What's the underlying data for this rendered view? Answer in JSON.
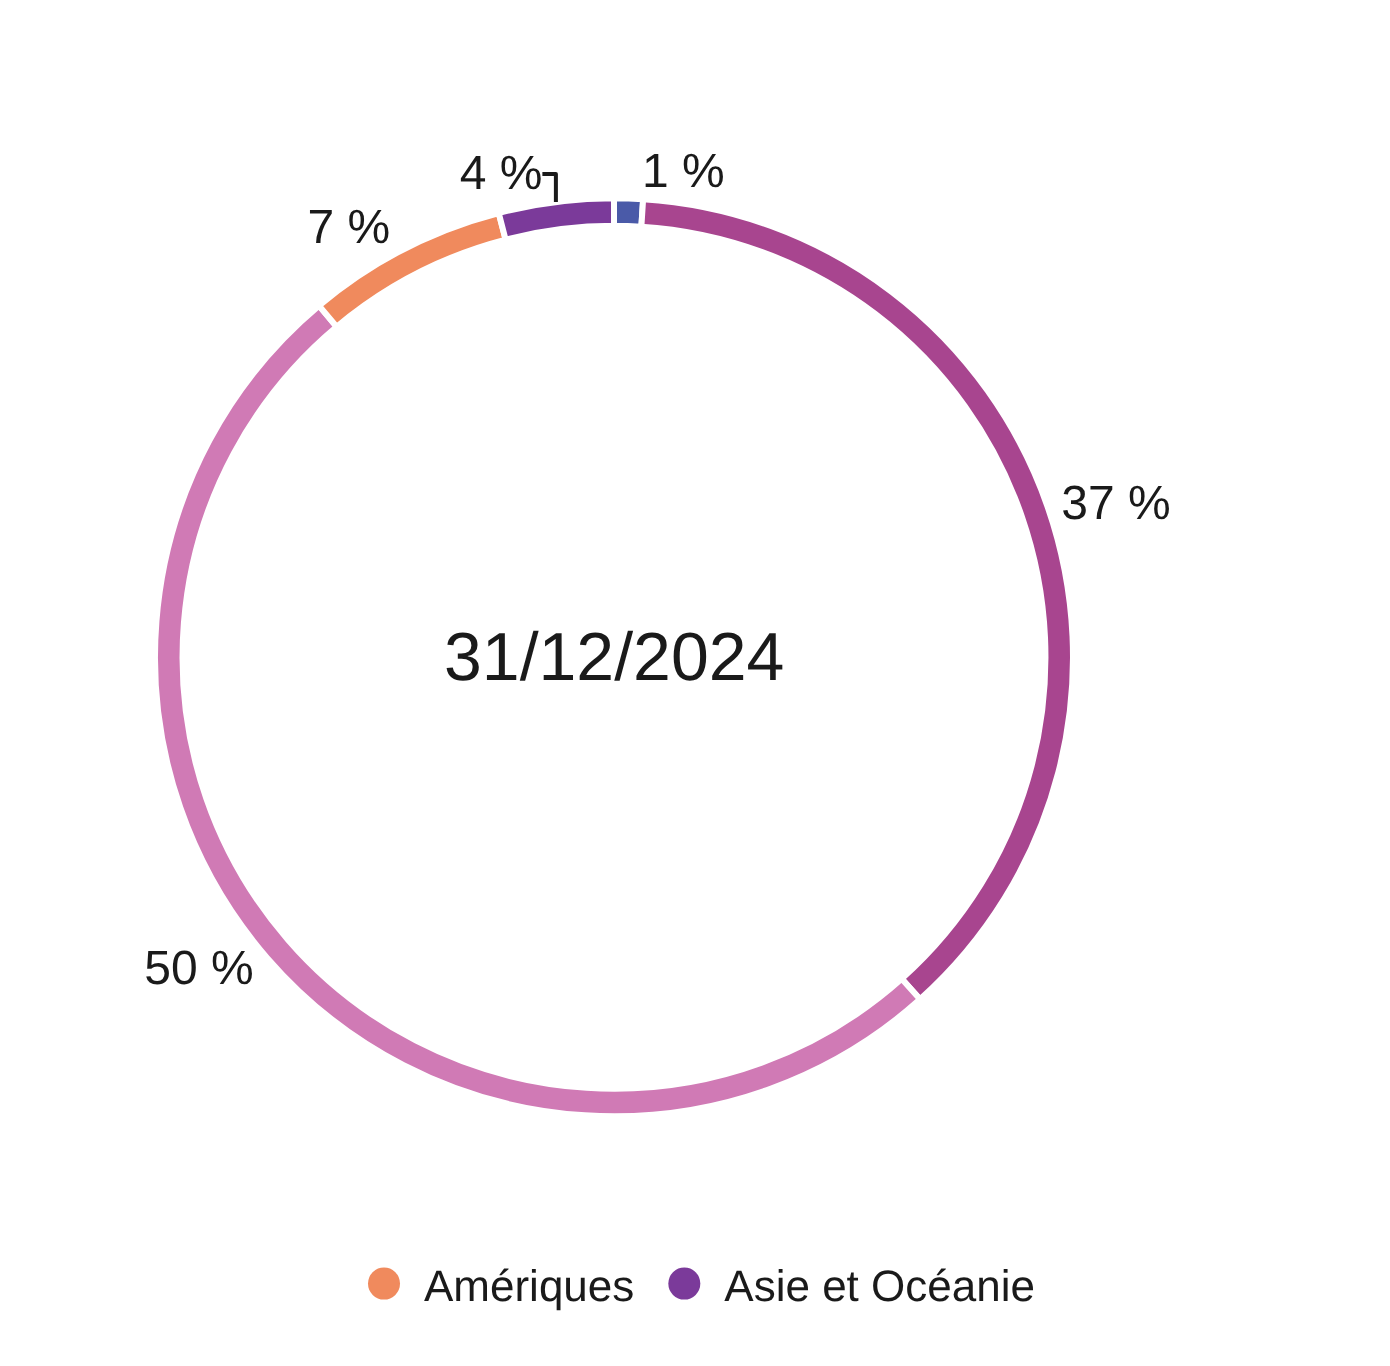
{
  "chart_data": {
    "type": "donut",
    "title": "31/12/2024",
    "categories": [
      null,
      null,
      null,
      "Amériques",
      "Asie et Océanie"
    ],
    "values": [
      1,
      37,
      50,
      7,
      4
    ],
    "colors": [
      "#4a5aa8",
      "#a8458f",
      "#d07ab5",
      "#f08a5d",
      "#7b3a9a"
    ],
    "value_labels": [
      "1 %",
      "37 %",
      "50 %",
      "7 %",
      "4 %"
    ],
    "legend": "bottom"
  }
}
